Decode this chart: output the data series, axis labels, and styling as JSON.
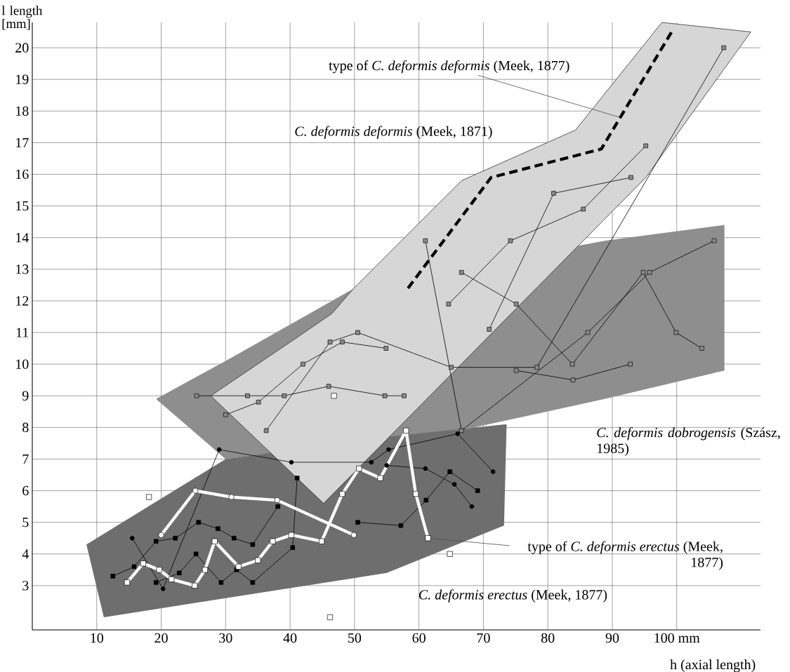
{
  "chart_data": {
    "type": "line",
    "xlabel": "h (axial length)",
    "ylabel": "l length [mm]",
    "xlim": [
      0,
      113
    ],
    "ylim": [
      1.6,
      20.8
    ],
    "xticks": [
      10,
      20,
      30,
      40,
      50,
      60,
      70,
      80,
      90,
      {
        "value": 100,
        "label": "100 mm"
      }
    ],
    "yticks": [
      3,
      4,
      5,
      6,
      7,
      8,
      9,
      10,
      11,
      12,
      13,
      14,
      15,
      16,
      17,
      18,
      19,
      20
    ],
    "grid": true,
    "annotations": [
      {
        "text": "type of *C. deformis deformis* (Meek, 1877)",
        "x": 91.2,
        "y": 17.8
      },
      {
        "text": "type of *C. deformis erectus* (Meek, 1877)",
        "x": 61.4,
        "y": 4.5
      }
    ],
    "series": [
      {
        "type": "area",
        "name": "*C. deformis dobrogensis* (Szász, 1985)",
        "color": "#8e8e8e",
        "x": [
          19.2,
          30,
          50,
          88.8,
          107.4,
          107.4,
          88.8,
          68.6,
          30
        ],
        "values": [
          8.9,
          10.1,
          12.4,
          13.9,
          14.4,
          9.8,
          8.9,
          8.0,
          7.0
        ]
      },
      {
        "type": "area",
        "name": "*C. deformis erectus* (Meek, 1877)",
        "color": "#6e6e6e",
        "x": [
          8.4,
          30,
          55,
          73.6,
          73.2,
          55,
          11.1
        ],
        "values": [
          4.3,
          7.0,
          7.7,
          8.1,
          4.9,
          3.4,
          2.0
        ]
      },
      {
        "type": "area",
        "name": "*C. deformis deformis* (Meek, 1871)",
        "color": "#d6d6d6",
        "x": [
          27.7,
          41.5,
          46.5,
          49.9,
          66.6,
          84.3,
          97.7,
          111.5,
          95.2,
          45.2
        ],
        "values": [
          9.0,
          10.9,
          11.6,
          12.4,
          15.8,
          17.4,
          20.8,
          20.5,
          15.9,
          5.6
        ]
      },
      {
        "color": "#8a8a8a",
        "marker": "square",
        "x": [
          75.1,
          83.9,
          92.8
        ],
        "values": [
          9.8,
          9.5,
          10.0
        ]
      },
      {
        "color": "#8a8a8a",
        "marker": "square",
        "x": [
          61.0,
          66.6,
          86.2,
          95.8,
          105.8
        ],
        "values": [
          13.9,
          7.9,
          11.0,
          12.9,
          13.9
        ]
      },
      {
        "color": "#8a8a8a",
        "marker": "square",
        "x": [
          64.6,
          74.2,
          85.5,
          95.2
        ],
        "values": [
          11.9,
          13.9,
          14.9,
          16.9
        ]
      },
      {
        "color": "#8a8a8a",
        "marker": "square",
        "x": [
          66.6,
          75.1,
          83.8,
          94.8,
          99.9,
          103.9
        ],
        "values": [
          12.9,
          11.9,
          10.0,
          12.9,
          11.0,
          10.5
        ]
      },
      {
        "color": "#8a8a8a",
        "marker": "square",
        "x": [
          70.9,
          80.9,
          92.9
        ],
        "values": [
          11.1,
          15.4,
          15.9
        ]
      },
      {
        "color": "#8a8a8a",
        "marker": "square",
        "x": [
          25.5,
          33.4,
          39.1,
          46.0,
          54.7,
          57.7
        ],
        "values": [
          9.0,
          9.0,
          9.0,
          9.3,
          9.0,
          9.0
        ]
      },
      {
        "color": "#8a8a8a",
        "marker": "square",
        "x": [
          30.0,
          35.1,
          42.0,
          48.1,
          54.9
        ],
        "values": [
          8.4,
          8.8,
          10.0,
          10.7,
          10.5
        ]
      },
      {
        "color": "#8a8a8a",
        "marker": "square",
        "x": [
          36.3,
          46.2,
          50.5,
          65.0,
          78.3,
          107.3
        ],
        "values": [
          7.9,
          10.7,
          11.0,
          9.9,
          9.9,
          20.0
        ]
      },
      {
        "color": "#000000",
        "marker": "square",
        "x": [
          12.5,
          15.8,
          19.2,
          22.2,
          25.8,
          28.8,
          31.3,
          34.2,
          38.1
        ],
        "values": [
          3.3,
          3.6,
          4.4,
          4.5,
          5.0,
          4.8,
          4.5,
          4.3,
          5.5
        ]
      },
      {
        "color": "#000000",
        "marker": "square",
        "x": [
          19.2,
          22.8,
          25.4,
          29.3,
          31.7,
          34.2,
          40.4,
          41.1
        ],
        "values": [
          3.1,
          3.4,
          4.0,
          3.1,
          3.5,
          3.1,
          4.2,
          6.4
        ]
      },
      {
        "color": "#000000",
        "marker": "square",
        "x": [
          50.5,
          57.2,
          61.1,
          64.8,
          69.1
        ],
        "values": [
          5.0,
          4.9,
          5.7,
          6.6,
          6.0
        ]
      },
      {
        "color": "#000000",
        "marker": "circle",
        "x": [
          15.5,
          20.3,
          29.0,
          40.2,
          52.6,
          55.3,
          66.0,
          71.5
        ],
        "values": [
          4.5,
          2.9,
          7.3,
          6.9,
          6.9,
          7.3,
          7.8,
          6.6
        ]
      },
      {
        "color": "#000000",
        "marker": "circle",
        "x": [
          55.0,
          61.0,
          65.5,
          68.2
        ],
        "values": [
          6.8,
          6.7,
          6.2,
          5.5
        ]
      },
      {
        "color": "#ffffff",
        "marker": "circle",
        "x": [
          20.0,
          25.3,
          30.9,
          38.0,
          49.9
        ],
        "values": [
          4.6,
          6.0,
          5.8,
          5.7,
          4.6
        ]
      },
      {
        "color": "#000000",
        "marker": "none",
        "line_style": "dashed",
        "x": [
          58.3,
          71.2,
          88.3,
          99.5
        ],
        "values": [
          12.4,
          15.9,
          16.8,
          20.6
        ]
      },
      {
        "color": "#ffffff",
        "marker": "square",
        "x": [
          14.7,
          17.2,
          19.7,
          21.6,
          25.2,
          26.8,
          28.3,
          32.0,
          35.0,
          37.3,
          40.2,
          44.9,
          48.1,
          50.7,
          54.0,
          58.0,
          59.5,
          61.4
        ],
        "values": [
          3.1,
          3.7,
          3.5,
          3.2,
          3.0,
          3.5,
          4.4,
          3.6,
          3.8,
          4.4,
          4.6,
          4.4,
          5.9,
          6.7,
          6.4,
          7.9,
          5.9,
          4.5
        ]
      },
      {
        "type": "scatter",
        "color": "#ffffff",
        "marker": "square",
        "x": [
          18.1,
          46.2,
          46.8,
          64.8
        ],
        "values": [
          5.8,
          2.0,
          9.0,
          4.0
        ]
      }
    ]
  }
}
